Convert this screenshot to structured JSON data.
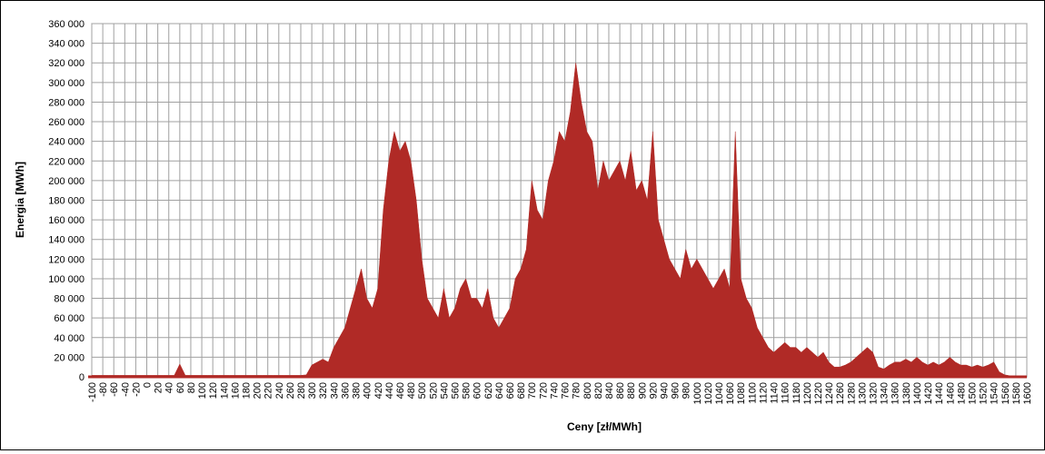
{
  "chart_data": {
    "type": "area",
    "xlabel": "Ceny [zł/MWh]",
    "ylabel": "Energia [MWh]",
    "color": "#b02a26",
    "grid": true,
    "xlim": [
      -100,
      1600
    ],
    "xticks": [
      -100,
      -80,
      -60,
      -40,
      -20,
      0,
      20,
      40,
      60,
      80,
      100,
      120,
      140,
      160,
      180,
      200,
      220,
      240,
      260,
      280,
      300,
      320,
      340,
      360,
      380,
      400,
      420,
      440,
      460,
      480,
      500,
      520,
      540,
      560,
      580,
      600,
      620,
      640,
      660,
      680,
      700,
      720,
      740,
      760,
      780,
      800,
      820,
      840,
      860,
      880,
      900,
      920,
      940,
      960,
      980,
      1000,
      1020,
      1040,
      1060,
      1080,
      1100,
      1120,
      1140,
      1160,
      1180,
      1200,
      1220,
      1240,
      1260,
      1280,
      1300,
      1320,
      1340,
      1360,
      1380,
      1400,
      1420,
      1440,
      1460,
      1480,
      1500,
      1520,
      1540,
      1560,
      1580,
      1600
    ],
    "ylim": [
      0,
      360000
    ],
    "yticks": [
      {
        "value": 0,
        "label": "0"
      },
      {
        "value": 20000,
        "label": "20 000"
      },
      {
        "value": 40000,
        "label": "40 000"
      },
      {
        "value": 60000,
        "label": "60 000"
      },
      {
        "value": 80000,
        "label": "80 000"
      },
      {
        "value": 100000,
        "label": "100 000"
      },
      {
        "value": 120000,
        "label": "120 000"
      },
      {
        "value": 140000,
        "label": "140 000"
      },
      {
        "value": 160000,
        "label": "160 000"
      },
      {
        "value": 180000,
        "label": "180 000"
      },
      {
        "value": 200000,
        "label": "200 000"
      },
      {
        "value": 220000,
        "label": "220 000"
      },
      {
        "value": 240000,
        "label": "240 000"
      },
      {
        "value": 260000,
        "label": "260 000"
      },
      {
        "value": 280000,
        "label": "280 000"
      },
      {
        "value": 300000,
        "label": "300 000"
      },
      {
        "value": 320000,
        "label": "320 000"
      },
      {
        "value": 340000,
        "label": "340 000"
      },
      {
        "value": 360000,
        "label": "360 000"
      }
    ],
    "x": [
      -100,
      -90,
      -80,
      -70,
      -60,
      -50,
      -40,
      -30,
      -20,
      -10,
      0,
      10,
      20,
      30,
      40,
      50,
      60,
      70,
      80,
      90,
      100,
      110,
      120,
      130,
      140,
      150,
      160,
      170,
      180,
      190,
      200,
      210,
      220,
      230,
      240,
      250,
      260,
      270,
      280,
      290,
      300,
      310,
      320,
      330,
      340,
      350,
      360,
      370,
      380,
      390,
      400,
      410,
      420,
      430,
      440,
      450,
      460,
      470,
      480,
      490,
      500,
      510,
      520,
      530,
      540,
      550,
      560,
      570,
      580,
      590,
      600,
      610,
      620,
      630,
      640,
      650,
      660,
      670,
      680,
      690,
      700,
      710,
      720,
      730,
      740,
      750,
      760,
      770,
      780,
      790,
      800,
      810,
      820,
      830,
      840,
      850,
      860,
      870,
      880,
      890,
      900,
      910,
      920,
      930,
      940,
      950,
      960,
      970,
      980,
      990,
      1000,
      1010,
      1020,
      1030,
      1040,
      1050,
      1060,
      1070,
      1080,
      1090,
      1100,
      1110,
      1120,
      1130,
      1140,
      1150,
      1160,
      1170,
      1180,
      1190,
      1200,
      1210,
      1220,
      1230,
      1240,
      1250,
      1260,
      1270,
      1280,
      1290,
      1300,
      1310,
      1320,
      1330,
      1340,
      1350,
      1360,
      1370,
      1380,
      1390,
      1400,
      1410,
      1420,
      1430,
      1440,
      1450,
      1460,
      1470,
      1480,
      1490,
      1500,
      1510,
      1520,
      1530,
      1540,
      1550,
      1560,
      1570,
      1580,
      1590,
      1600
    ],
    "values": [
      1500,
      1500,
      1500,
      1500,
      1500,
      1500,
      1500,
      1500,
      1500,
      1500,
      1500,
      1500,
      1500,
      1500,
      1500,
      1500,
      13000,
      1500,
      1500,
      1500,
      1500,
      1500,
      1500,
      1500,
      1500,
      1500,
      1500,
      1500,
      1500,
      1500,
      1500,
      1500,
      1500,
      1500,
      1500,
      1500,
      1500,
      1500,
      1500,
      2000,
      12000,
      15000,
      18000,
      15000,
      30000,
      40000,
      50000,
      70000,
      90000,
      110000,
      80000,
      70000,
      90000,
      170000,
      220000,
      250000,
      230000,
      240000,
      220000,
      180000,
      120000,
      80000,
      70000,
      60000,
      90000,
      60000,
      70000,
      90000,
      100000,
      80000,
      80000,
      70000,
      90000,
      60000,
      50000,
      60000,
      70000,
      100000,
      110000,
      130000,
      200000,
      170000,
      160000,
      200000,
      220000,
      250000,
      240000,
      270000,
      320000,
      280000,
      250000,
      240000,
      190000,
      220000,
      200000,
      210000,
      220000,
      200000,
      230000,
      190000,
      200000,
      180000,
      250000,
      160000,
      140000,
      120000,
      110000,
      100000,
      130000,
      110000,
      120000,
      110000,
      100000,
      90000,
      100000,
      110000,
      90000,
      250000,
      100000,
      80000,
      70000,
      50000,
      40000,
      30000,
      25000,
      30000,
      35000,
      30000,
      30000,
      25000,
      30000,
      25000,
      20000,
      25000,
      15000,
      10000,
      10000,
      12000,
      15000,
      20000,
      25000,
      30000,
      25000,
      10000,
      8000,
      12000,
      15000,
      15000,
      18000,
      15000,
      20000,
      15000,
      12000,
      15000,
      12000,
      15000,
      20000,
      15000,
      12000,
      12000,
      10000,
      12000,
      10000,
      12000,
      15000,
      5000,
      2000,
      1000,
      0,
      0,
      0
    ]
  }
}
